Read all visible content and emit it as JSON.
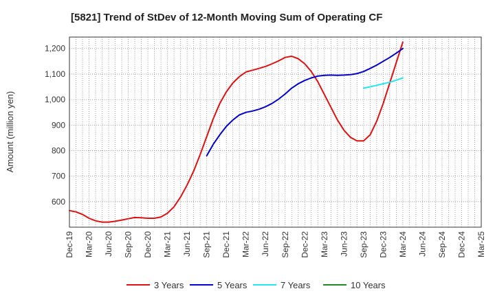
{
  "chart_data": {
    "type": "line",
    "title": "[5821]  Trend of StDev of 12-Month Moving Sum of Operating CF",
    "ylabel": "Amount (million yen)",
    "xlabel": "",
    "ylim": [
      500,
      1245
    ],
    "yticks": [
      600,
      700,
      800,
      900,
      1000,
      1100,
      1200
    ],
    "ytick_labels": [
      "600",
      "700",
      "800",
      "900",
      "1,000",
      "1,100",
      "1,200"
    ],
    "x_start": "2019-12",
    "x_end": "2025-03",
    "xtick_labels": [
      "Dec-19",
      "Mar-20",
      "Jun-20",
      "Sep-20",
      "Dec-20",
      "Mar-21",
      "Jun-21",
      "Sep-21",
      "Dec-21",
      "Mar-22",
      "Jun-22",
      "Sep-22",
      "Dec-22",
      "Mar-23",
      "Jun-23",
      "Sep-23",
      "Dec-23",
      "Mar-24",
      "Jun-24",
      "Sep-24",
      "Dec-24",
      "Mar-25"
    ],
    "grid": true,
    "legend_position": "bottom",
    "series": [
      {
        "name": "3 Years",
        "color": "#dd1111",
        "points": [
          [
            "2019-12",
            565
          ],
          [
            "2020-01",
            560
          ],
          [
            "2020-02",
            550
          ],
          [
            "2020-03",
            535
          ],
          [
            "2020-04",
            525
          ],
          [
            "2020-05",
            520
          ],
          [
            "2020-06",
            520
          ],
          [
            "2020-07",
            523
          ],
          [
            "2020-08",
            528
          ],
          [
            "2020-09",
            533
          ],
          [
            "2020-10",
            538
          ],
          [
            "2020-11",
            537
          ],
          [
            "2020-12",
            535
          ],
          [
            "2021-01",
            535
          ],
          [
            "2021-02",
            540
          ],
          [
            "2021-03",
            555
          ],
          [
            "2021-04",
            580
          ],
          [
            "2021-05",
            618
          ],
          [
            "2021-06",
            665
          ],
          [
            "2021-07",
            720
          ],
          [
            "2021-08",
            785
          ],
          [
            "2021-09",
            855
          ],
          [
            "2021-10",
            925
          ],
          [
            "2021-11",
            985
          ],
          [
            "2021-12",
            1030
          ],
          [
            "2022-01",
            1065
          ],
          [
            "2022-02",
            1090
          ],
          [
            "2022-03",
            1108
          ],
          [
            "2022-04",
            1115
          ],
          [
            "2022-05",
            1122
          ],
          [
            "2022-06",
            1130
          ],
          [
            "2022-07",
            1140
          ],
          [
            "2022-08",
            1152
          ],
          [
            "2022-09",
            1165
          ],
          [
            "2022-10",
            1170
          ],
          [
            "2022-11",
            1160
          ],
          [
            "2022-12",
            1140
          ],
          [
            "2023-01",
            1110
          ],
          [
            "2023-02",
            1070
          ],
          [
            "2023-03",
            1020
          ],
          [
            "2023-04",
            970
          ],
          [
            "2023-05",
            920
          ],
          [
            "2023-06",
            880
          ],
          [
            "2023-07",
            852
          ],
          [
            "2023-08",
            838
          ],
          [
            "2023-09",
            838
          ],
          [
            "2023-10",
            862
          ],
          [
            "2023-11",
            915
          ],
          [
            "2023-12",
            985
          ],
          [
            "2024-01",
            1065
          ],
          [
            "2024-02",
            1145
          ],
          [
            "2024-03",
            1225
          ]
        ]
      },
      {
        "name": "5 Years",
        "color": "#0000cc",
        "points": [
          [
            "2021-09",
            780
          ],
          [
            "2021-10",
            825
          ],
          [
            "2021-11",
            862
          ],
          [
            "2021-12",
            895
          ],
          [
            "2022-01",
            920
          ],
          [
            "2022-02",
            940
          ],
          [
            "2022-03",
            950
          ],
          [
            "2022-04",
            955
          ],
          [
            "2022-05",
            962
          ],
          [
            "2022-06",
            972
          ],
          [
            "2022-07",
            985
          ],
          [
            "2022-08",
            1002
          ],
          [
            "2022-09",
            1022
          ],
          [
            "2022-10",
            1045
          ],
          [
            "2022-11",
            1062
          ],
          [
            "2022-12",
            1075
          ],
          [
            "2023-01",
            1085
          ],
          [
            "2023-02",
            1092
          ],
          [
            "2023-03",
            1095
          ],
          [
            "2023-04",
            1096
          ],
          [
            "2023-05",
            1095
          ],
          [
            "2023-06",
            1096
          ],
          [
            "2023-07",
            1098
          ],
          [
            "2023-08",
            1102
          ],
          [
            "2023-09",
            1110
          ],
          [
            "2023-10",
            1122
          ],
          [
            "2023-11",
            1135
          ],
          [
            "2023-12",
            1150
          ],
          [
            "2024-01",
            1165
          ],
          [
            "2024-02",
            1182
          ],
          [
            "2024-03",
            1200
          ]
        ]
      },
      {
        "name": "7 Years",
        "color": "#22e8ee",
        "points": [
          [
            "2023-09",
            1045
          ],
          [
            "2023-10",
            1050
          ],
          [
            "2023-11",
            1056
          ],
          [
            "2023-12",
            1062
          ],
          [
            "2024-01",
            1068
          ],
          [
            "2024-02",
            1076
          ],
          [
            "2024-03",
            1085
          ]
        ]
      },
      {
        "name": "10 Years",
        "color": "#228822",
        "points": []
      }
    ]
  }
}
